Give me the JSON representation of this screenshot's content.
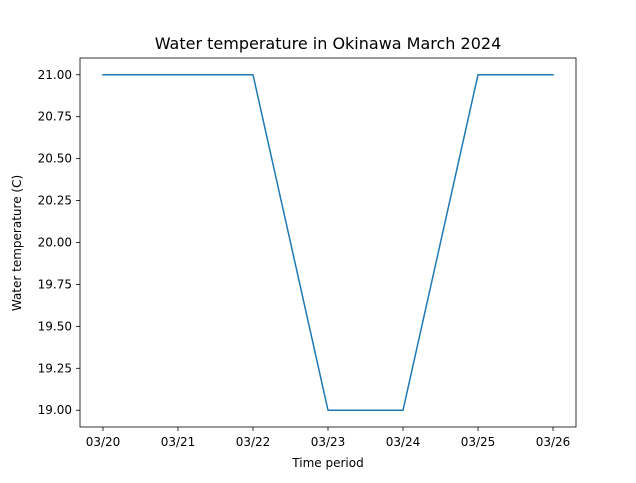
{
  "chart_data": {
    "type": "line",
    "title": "Water temperature in Okinawa March 2024",
    "xlabel": "Time period",
    "ylabel": "Water temperature (C)",
    "categories": [
      "03/20",
      "03/21",
      "03/22",
      "03/23",
      "03/24",
      "03/25",
      "03/26"
    ],
    "series": [
      {
        "values": [
          21.0,
          21.0,
          21.0,
          19.0,
          19.0,
          21.0,
          21.0
        ],
        "color": "#1f77b4"
      }
    ],
    "ylim": [
      18.9,
      21.1
    ],
    "yticks": [
      "19.00",
      "19.25",
      "19.50",
      "19.75",
      "20.00",
      "20.25",
      "20.50",
      "20.75",
      "21.00"
    ],
    "grid": false,
    "legend": "none"
  }
}
